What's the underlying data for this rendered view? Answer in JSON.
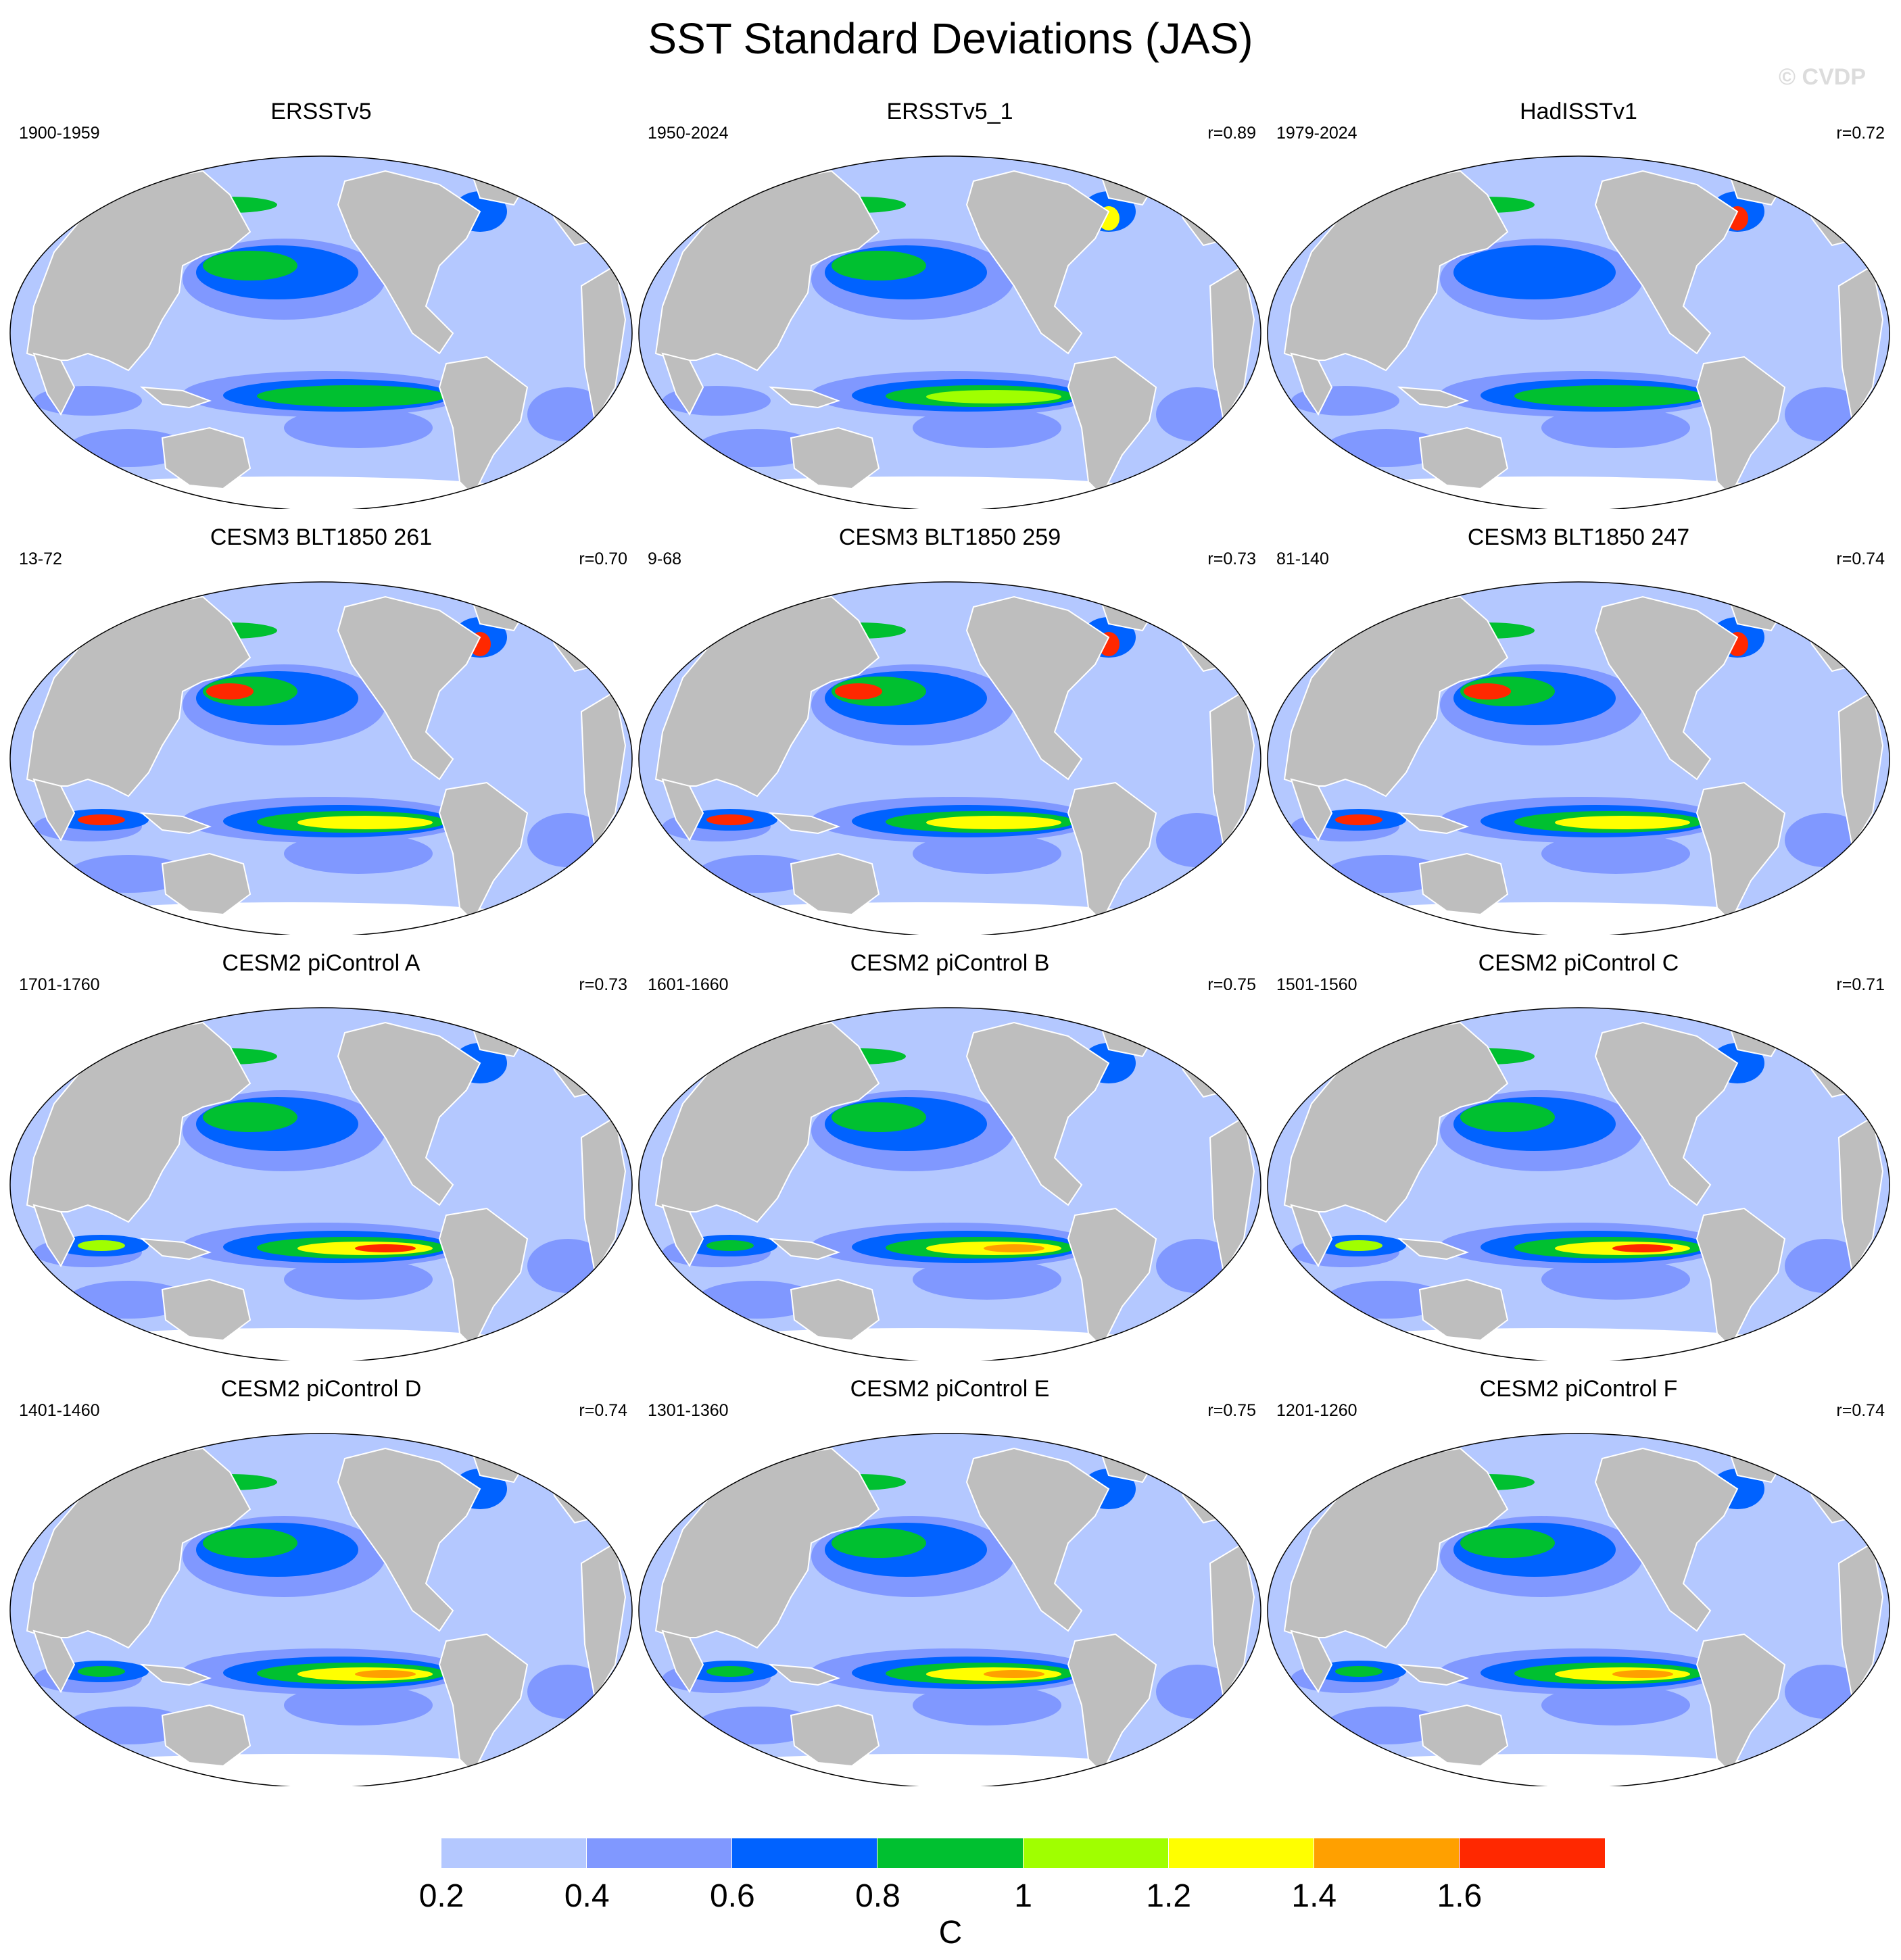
{
  "title": "SST Standard Deviations (JAS)",
  "watermark": "© CVDP",
  "panels": [
    {
      "name": "ERSSTv5",
      "years": "1900-1959",
      "r": ""
    },
    {
      "name": "ERSSTv5_1",
      "years": "1950-2024",
      "r": "r=0.89"
    },
    {
      "name": "HadISSTv1",
      "years": "1979-2024",
      "r": "r=0.72"
    },
    {
      "name": "CESM3 BLT1850 261",
      "years": "13-72",
      "r": "r=0.70"
    },
    {
      "name": "CESM3 BLT1850 259",
      "years": "9-68",
      "r": "r=0.73"
    },
    {
      "name": "CESM3 BLT1850 247",
      "years": "81-140",
      "r": "r=0.74"
    },
    {
      "name": "CESM2 piControl A",
      "years": "1701-1760",
      "r": "r=0.73"
    },
    {
      "name": "CESM2 piControl B",
      "years": "1601-1660",
      "r": "r=0.75"
    },
    {
      "name": "CESM2 piControl C",
      "years": "1501-1560",
      "r": "r=0.71"
    },
    {
      "name": "CESM2 piControl D",
      "years": "1401-1460",
      "r": "r=0.74"
    },
    {
      "name": "CESM2 piControl E",
      "years": "1301-1360",
      "r": "r=0.75"
    },
    {
      "name": "CESM2 piControl F",
      "years": "1201-1260",
      "r": "r=0.74"
    }
  ],
  "colorbar": {
    "unit": "C",
    "ticks": [
      "0.2",
      "0.4",
      "0.6",
      "0.8",
      "1",
      "1.2",
      "1.4",
      "1.6"
    ],
    "colors": [
      "#ffffff",
      "#b4c8ff",
      "#8098ff",
      "#0062ff",
      "#00c030",
      "#a0ff00",
      "#ffff00",
      "#ffa000",
      "#ff2800"
    ]
  },
  "map_colors": {
    "land": "#bebebe",
    "ocean_base": "#b4c8ff",
    "coast": "#ffffff"
  }
}
